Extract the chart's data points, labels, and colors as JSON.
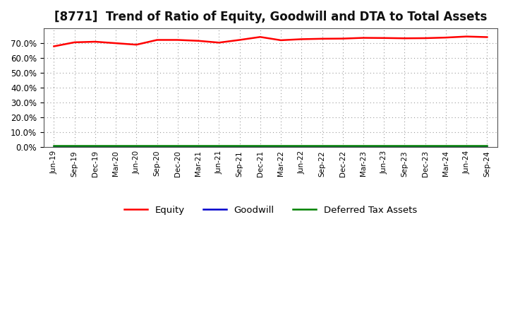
{
  "title": "[8771]  Trend of Ratio of Equity, Goodwill and DTA to Total Assets",
  "title_fontsize": 12,
  "ylim": [
    0.0,
    0.8
  ],
  "yticks": [
    0.0,
    0.1,
    0.2,
    0.3,
    0.4,
    0.5,
    0.6,
    0.7
  ],
  "background_color": "#ffffff",
  "plot_bg_color": "#ffffff",
  "grid_color": "#999999",
  "x_labels": [
    "Jun-19",
    "Sep-19",
    "Dec-19",
    "Mar-20",
    "Jun-20",
    "Sep-20",
    "Dec-20",
    "Mar-21",
    "Jun-21",
    "Sep-21",
    "Dec-21",
    "Mar-22",
    "Jun-22",
    "Sep-22",
    "Dec-22",
    "Mar-23",
    "Jun-23",
    "Sep-23",
    "Dec-23",
    "Mar-24",
    "Jun-24",
    "Sep-24"
  ],
  "equity": [
    0.679,
    0.706,
    0.71,
    0.7,
    0.69,
    0.722,
    0.722,
    0.716,
    0.704,
    0.722,
    0.742,
    0.72,
    0.727,
    0.73,
    0.731,
    0.736,
    0.735,
    0.733,
    0.734,
    0.738,
    0.745,
    0.741
  ],
  "goodwill": [
    0.0,
    0.0,
    0.0,
    0.0,
    0.0,
    0.0,
    0.0,
    0.0,
    0.0,
    0.0,
    0.0,
    0.0,
    0.0,
    0.0,
    0.0,
    0.0,
    0.0,
    0.0,
    0.0,
    0.0,
    0.0,
    0.0
  ],
  "dta": [
    0.009,
    0.009,
    0.009,
    0.009,
    0.009,
    0.009,
    0.009,
    0.009,
    0.009,
    0.009,
    0.009,
    0.009,
    0.009,
    0.009,
    0.009,
    0.009,
    0.009,
    0.009,
    0.009,
    0.009,
    0.009,
    0.009
  ],
  "equity_color": "#ff0000",
  "goodwill_color": "#0000cc",
  "dta_color": "#008000",
  "line_width": 1.8,
  "legend_labels": [
    "Equity",
    "Goodwill",
    "Deferred Tax Assets"
  ]
}
